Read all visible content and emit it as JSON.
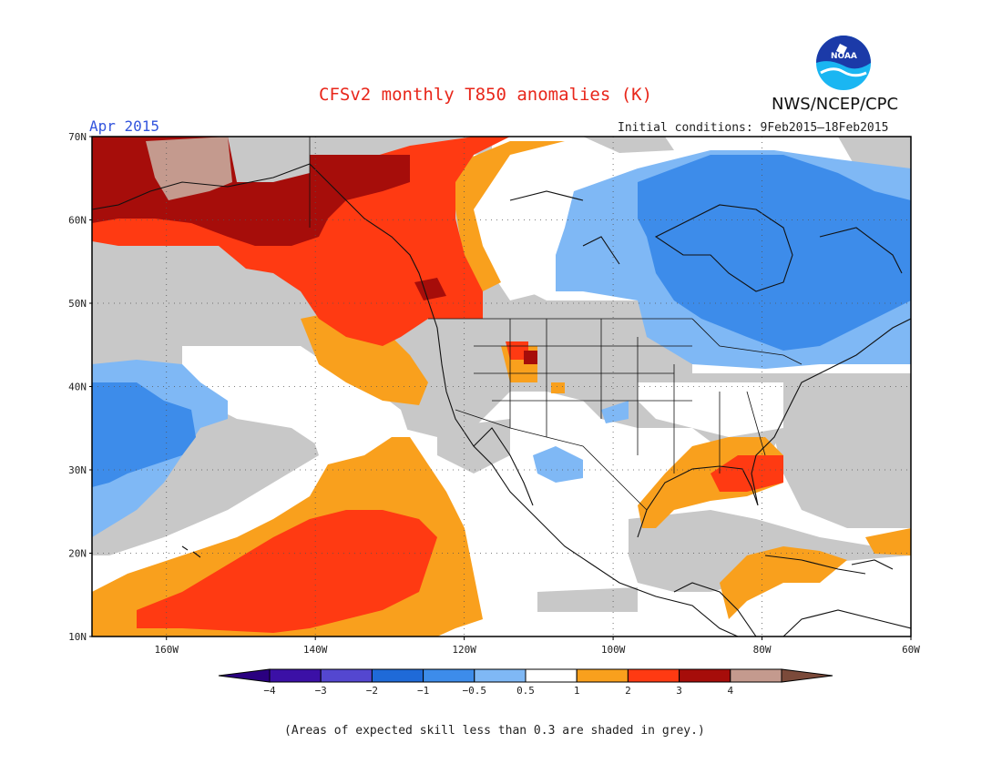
{
  "header": {
    "title": "CFSv2 monthly T850 anomalies (K)",
    "month": "Apr 2015",
    "initial_conditions": "Initial conditions: 9Feb2015–18Feb2015",
    "agency": "NWS/NCEP/CPC",
    "logo_text": "NOAA"
  },
  "map": {
    "lat_labels": [
      "70N",
      "60N",
      "50N",
      "40N",
      "30N",
      "20N",
      "10N"
    ],
    "lon_labels": [
      "160W",
      "140W",
      "120W",
      "100W",
      "80W",
      "60W"
    ],
    "extent": {
      "lon_min": -170,
      "lon_max": -60,
      "lat_min": 10,
      "lat_max": 70
    },
    "colors": {
      "grey": "#c8c8c8",
      "white": "#ffffff",
      "neg_05": "#7fb8f5",
      "neg_1": "#3d8cea",
      "pos_05": "#f9a01d",
      "pos_1": "#ff3a12",
      "pos_2": "#a60d0a",
      "pos_3": "#c49a8e"
    }
  },
  "colorbar": {
    "labels": [
      "−4",
      "−3",
      "−2",
      "−1",
      "−0.5",
      "0.5",
      "1",
      "2",
      "3",
      "4"
    ],
    "colors": [
      "#3b10a6",
      "#5447d0",
      "#1f6ad8",
      "#3d8cea",
      "#7fb8f5",
      "#ffffff",
      "#f9a01d",
      "#ff3a12",
      "#a60d0a",
      "#c49a8e"
    ],
    "end_low": "#2a0080",
    "end_high": "#7b4a3a"
  },
  "footer": {
    "note": "(Areas of expected skill less than 0.3 are shaded in grey.)"
  }
}
